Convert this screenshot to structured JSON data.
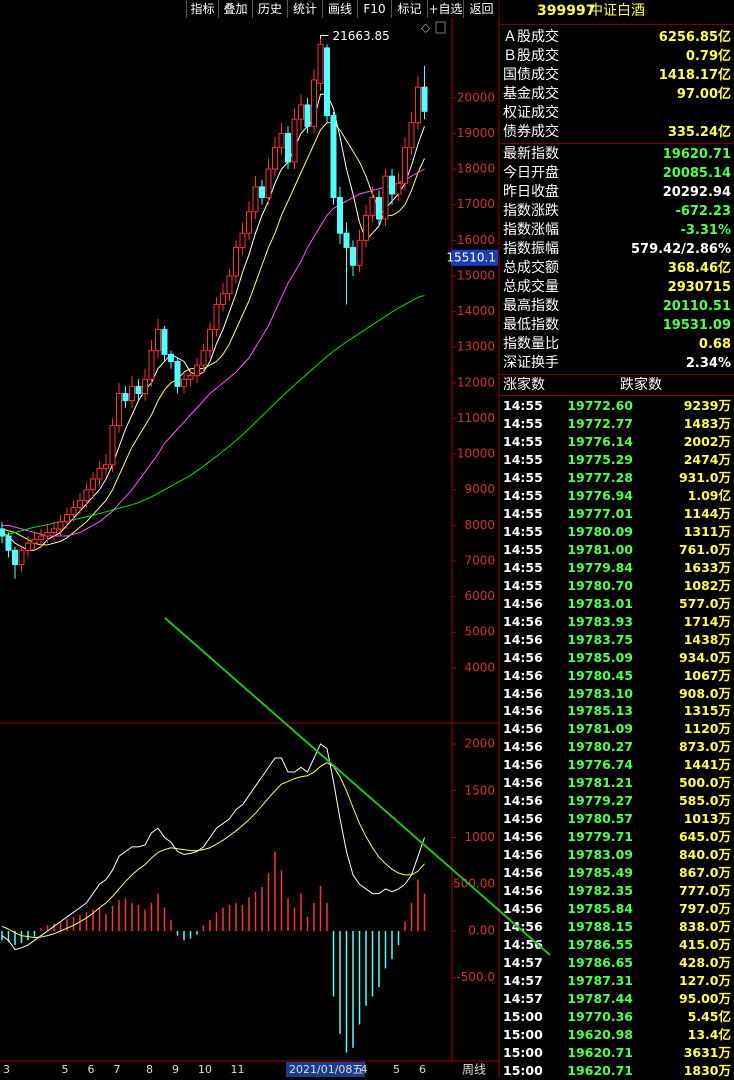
{
  "toolbar": [
    "指标",
    "叠加",
    "历史",
    "统计",
    "画线",
    "F10",
    "标记",
    "+自选",
    "返回"
  ],
  "chart_data": [
    {
      "type": "candlestick",
      "period": "周线",
      "up_color": "#ff3232",
      "down_color": "#54ffff",
      "categories": [
        "3",
        null,
        null,
        null,
        null,
        null,
        null,
        null,
        null,
        "5",
        null,
        null,
        null,
        "6",
        null,
        null,
        null,
        "7",
        null,
        null,
        null,
        null,
        "8",
        null,
        null,
        null,
        "9",
        null,
        null,
        null,
        "10",
        null,
        null,
        null,
        null,
        "11",
        null,
        null,
        null,
        null,
        null,
        null,
        null,
        null,
        "2021/01/08五",
        null,
        null,
        null,
        null,
        null,
        null,
        null,
        null,
        null,
        null,
        "4",
        null,
        null,
        null,
        null,
        "5",
        null,
        null,
        null,
        "6",
        null
      ],
      "open": [
        7900,
        7700,
        7300,
        6900,
        7300,
        7500,
        7600,
        7700,
        7800,
        7900,
        8100,
        8300,
        8500,
        8700,
        9000,
        9300,
        9600,
        9700,
        10800,
        11700,
        11500,
        11900,
        11700,
        12100,
        12900,
        13500,
        12800,
        12600,
        11900,
        12100,
        12200,
        12500,
        12900,
        13500,
        14200,
        14500,
        15000,
        15800,
        16200,
        16800,
        17500,
        17200,
        18000,
        18600,
        19000,
        18200,
        19400,
        19800,
        19200,
        20400,
        21400,
        19500,
        17200,
        16200,
        15800,
        15300,
        16000,
        16700,
        17200,
        16600,
        17800,
        17300,
        17600,
        18600,
        19300,
        20300
      ],
      "high": [
        8100,
        7800,
        7400,
        7400,
        7700,
        7800,
        7900,
        8000,
        8100,
        8300,
        8500,
        8700,
        8900,
        9200,
        9500,
        9800,
        10000,
        11000,
        12000,
        11900,
        12200,
        12100,
        12400,
        13200,
        13800,
        13600,
        12900,
        12700,
        12300,
        12400,
        12700,
        13100,
        13700,
        14400,
        14800,
        15200,
        16000,
        16500,
        17100,
        17800,
        17700,
        18300,
        18900,
        19300,
        19200,
        19700,
        20100,
        20000,
        20800,
        21663.85,
        21500,
        19600,
        17500,
        16500,
        16000,
        16300,
        17000,
        17500,
        17400,
        18000,
        18000,
        17900,
        18900,
        19600,
        20600,
        20900
      ],
      "low": [
        7500,
        7100,
        6500,
        6700,
        7100,
        7300,
        7400,
        7500,
        7600,
        7700,
        7900,
        8100,
        8300,
        8500,
        8800,
        9100,
        9400,
        9500,
        10600,
        11300,
        11300,
        11500,
        11500,
        11900,
        12700,
        12600,
        12400,
        11700,
        11700,
        11900,
        12000,
        12300,
        12700,
        13300,
        14000,
        14300,
        14800,
        15600,
        16000,
        16600,
        17000,
        17000,
        17800,
        18400,
        18000,
        18000,
        19100,
        19000,
        19000,
        20200,
        19300,
        17000,
        15900,
        14200,
        15000,
        15100,
        15800,
        16500,
        16400,
        16400,
        17000,
        17100,
        17400,
        18400,
        19100,
        19400
      ],
      "close": [
        7700,
        7300,
        6900,
        7300,
        7500,
        7600,
        7700,
        7800,
        7900,
        8100,
        8300,
        8500,
        8700,
        9000,
        9300,
        9600,
        9700,
        10800,
        11700,
        11500,
        11900,
        11700,
        12100,
        12900,
        13500,
        12800,
        12600,
        11900,
        12100,
        12200,
        12500,
        12900,
        13500,
        14200,
        14500,
        15000,
        15800,
        16200,
        16800,
        17500,
        17200,
        18000,
        18600,
        19000,
        18200,
        19400,
        19800,
        19200,
        20500,
        21500,
        19500,
        17200,
        16200,
        15800,
        15300,
        16000,
        16700,
        17200,
        16600,
        17800,
        17300,
        17600,
        18600,
        19300,
        20300,
        19620.71
      ],
      "series": [
        {
          "color": "#ffffff",
          "values": [
            7800,
            7700,
            7500,
            7400,
            7300,
            7300,
            7400,
            7600,
            7700,
            7800,
            8000,
            8200,
            8400,
            8600,
            8800,
            9000,
            9300,
            9700,
            10200,
            10700,
            11100,
            11500,
            11800,
            12000,
            12400,
            12600,
            12800,
            12700,
            12600,
            12300,
            12200,
            12300,
            12600,
            13100,
            13500,
            14000,
            14500,
            15100,
            15600,
            16200,
            16700,
            17100,
            17600,
            18000,
            18200,
            18600,
            19000,
            19200,
            19400,
            20100,
            20100,
            19700,
            18900,
            18000,
            17300,
            16500,
            16000,
            16200,
            16400,
            16900,
            17100,
            17300,
            17600,
            18100,
            18700,
            19200
          ]
        },
        {
          "color": "#ffff54",
          "values": [
            7900,
            7850,
            7800,
            7700,
            7600,
            7500,
            7450,
            7450,
            7500,
            7550,
            7650,
            7800,
            7950,
            8100,
            8300,
            8500,
            8700,
            9000,
            9400,
            9800,
            10200,
            10500,
            10800,
            11100,
            11500,
            11800,
            12000,
            12100,
            12300,
            12400,
            12400,
            12400,
            12500,
            12600,
            12800,
            13100,
            13500,
            13900,
            14300,
            14800,
            15300,
            15800,
            16200,
            16700,
            17100,
            17500,
            17900,
            18300,
            18700,
            19100,
            19300,
            19300,
            19100,
            18800,
            18500,
            18200,
            17800,
            17300,
            16900,
            16700,
            16700,
            16800,
            17000,
            17400,
            17900,
            18300
          ]
        },
        {
          "color": "#ff54ff",
          "values": [
            8000,
            8000,
            7950,
            7900,
            7850,
            7800,
            7750,
            7700,
            7700,
            7700,
            7700,
            7750,
            7800,
            7900,
            8000,
            8100,
            8250,
            8400,
            8600,
            8800,
            9000,
            9250,
            9500,
            9750,
            10000,
            10300,
            10500,
            10700,
            10900,
            11100,
            11300,
            11500,
            11700,
            11850,
            12000,
            12150,
            12300,
            12500,
            12700,
            13000,
            13300,
            13600,
            14000,
            14400,
            14800,
            15100,
            15400,
            15800,
            16100,
            16400,
            16700,
            16900,
            17000,
            17100,
            17200,
            17300,
            17350,
            17400,
            17450,
            17500,
            17550,
            17600,
            17700,
            17800,
            17900,
            18000
          ]
        },
        {
          "color": "#00e600",
          "values": [
            7700,
            7750,
            7800,
            7850,
            7900,
            7950,
            7980,
            8020,
            8060,
            8100,
            8130,
            8160,
            8200,
            8240,
            8280,
            8330,
            8380,
            8430,
            8480,
            8530,
            8580,
            8640,
            8720,
            8800,
            8900,
            9000,
            9100,
            9200,
            9300,
            9400,
            9530,
            9660,
            9800,
            9940,
            10080,
            10230,
            10380,
            10540,
            10710,
            10890,
            11070,
            11250,
            11430,
            11600,
            11770,
            11940,
            12100,
            12260,
            12420,
            12580,
            12740,
            12890,
            13020,
            13150,
            13270,
            13390,
            13510,
            13630,
            13750,
            13870,
            13990,
            14100,
            14200,
            14300,
            14400,
            14450
          ]
        }
      ],
      "ylim": [
        2480,
        22240
      ],
      "yticks": [
        4000,
        5000,
        6000,
        7000,
        8000,
        9000,
        10000,
        11000,
        12000,
        13000,
        14000,
        15000,
        16000,
        17000,
        18000,
        19000,
        20000
      ],
      "cursor_value": 15510.1
    },
    {
      "type": "macd",
      "up_color": "#ff3232",
      "down_color": "#54ffff",
      "series": [
        {
          "color": "#ffffff",
          "values": [
            -50,
            -100,
            -200,
            -180,
            -150,
            -100,
            -50,
            0,
            50,
            100,
            150,
            200,
            250,
            300,
            400,
            500,
            550,
            650,
            800,
            850,
            900,
            900,
            920,
            1050,
            1100,
            1000,
            950,
            850,
            820,
            830,
            850,
            900,
            1000,
            1100,
            1150,
            1200,
            1300,
            1350,
            1450,
            1550,
            1650,
            1750,
            1850,
            1850,
            1700,
            1700,
            1750,
            1700,
            1850,
            2000,
            1950,
            1600,
            1200,
            850,
            600,
            500,
            450,
            400,
            400,
            450,
            420,
            450,
            500,
            600,
            800,
            1000
          ]
        },
        {
          "color": "#ffff54",
          "values": [
            50,
            20,
            -20,
            -50,
            -60,
            -70,
            -65,
            -50,
            -30,
            0,
            30,
            60,
            100,
            140,
            190,
            250,
            300,
            370,
            450,
            530,
            600,
            660,
            710,
            780,
            840,
            870,
            890,
            880,
            870,
            860,
            860,
            870,
            890,
            930,
            970,
            1020,
            1070,
            1130,
            1190,
            1260,
            1340,
            1420,
            1500,
            1570,
            1600,
            1630,
            1650,
            1660,
            1700,
            1760,
            1800,
            1760,
            1650,
            1500,
            1320,
            1150,
            1010,
            890,
            790,
            720,
            660,
            620,
            600,
            600,
            640,
            720
          ]
        }
      ],
      "histogram": [
        -100,
        -120,
        -150,
        -130,
        -100,
        -60,
        30,
        60,
        80,
        100,
        130,
        150,
        170,
        200,
        230,
        250,
        180,
        270,
        330,
        350,
        300,
        280,
        230,
        300,
        400,
        250,
        120,
        -50,
        -100,
        -80,
        -40,
        60,
        120,
        200,
        250,
        280,
        300,
        280,
        360,
        420,
        470,
        620,
        850,
        650,
        350,
        250,
        400,
        150,
        300,
        480,
        300,
        -700,
        -1100,
        -1300,
        -1250,
        -1000,
        -800,
        -700,
        -600,
        -400,
        -300,
        -150,
        100,
        300,
        550,
        400
      ],
      "ylim": [
        -1380,
        2214
      ],
      "yticks": [
        {
          "value": -500,
          "label": "-500.0"
        },
        {
          "value": 0,
          "label": "0.00"
        },
        {
          "value": 500,
          "label": "500.00"
        },
        1000,
        1500,
        2000
      ]
    }
  ],
  "quote_panel": {
    "code": "399997",
    "name": "中证白酒",
    "volume_rows": [
      {
        "label": "Ａ股成交",
        "value": "6256.85亿",
        "color": "#ffff54"
      },
      {
        "label": "Ｂ股成交",
        "value": "0.79亿",
        "color": "#ffff54"
      },
      {
        "label": "国债成交",
        "value": "1418.17亿",
        "color": "#ffff54"
      },
      {
        "label": "基金成交",
        "value": "97.00亿",
        "color": "#ffff54"
      },
      {
        "label": "权证成交"
      },
      {
        "label": "债券成交",
        "value": "335.24亿",
        "color": "#ffff54"
      }
    ],
    "index_rows": [
      {
        "label": "最新指数",
        "value": "19620.71",
        "color": "#54ff54"
      },
      {
        "label": "今日开盘",
        "value": "20085.14",
        "color": "#54ff54"
      },
      {
        "label": "昨日收盘",
        "value": "20292.94",
        "color": "#ffffff"
      },
      {
        "label": "指数涨跌",
        "value": "-672.23",
        "color": "#54ff54"
      },
      {
        "label": "指数涨幅",
        "value": "-3.31%",
        "color": "#54ff54"
      },
      {
        "label": "指数振幅",
        "value": "579.42/2.86%",
        "color": "#ffffff"
      },
      {
        "label": "总成交额",
        "value": "368.46亿",
        "color": "#ffff54"
      },
      {
        "label": "总成交量",
        "value": "2930715",
        "color": "#ffff54"
      },
      {
        "label": "最高指数",
        "value": "20110.51",
        "color": "#54ff54"
      },
      {
        "label": "最低指数",
        "value": "19531.09",
        "color": "#54ff54"
      },
      {
        "label": "指数量比",
        "value": "0.68",
        "color": "#ffff54"
      },
      {
        "label": "深证换手",
        "value": "2.34%",
        "color": "#ffffff"
      }
    ],
    "breadth_header": [
      "涨家数",
      "跌家数"
    ],
    "ticks": [
      [
        "14:55",
        "19772.60",
        "9239万"
      ],
      [
        "14:55",
        "19772.77",
        "1483万"
      ],
      [
        "14:55",
        "19776.14",
        "2002万"
      ],
      [
        "14:55",
        "19775.29",
        "2474万"
      ],
      [
        "14:55",
        "19777.28",
        "931.0万"
      ],
      [
        "14:55",
        "19776.94",
        "1.09亿"
      ],
      [
        "14:55",
        "19777.01",
        "1144万"
      ],
      [
        "14:55",
        "19780.09",
        "1311万"
      ],
      [
        "14:55",
        "19781.00",
        "761.0万"
      ],
      [
        "14:55",
        "19779.84",
        "1633万"
      ],
      [
        "14:55",
        "19780.70",
        "1082万"
      ],
      [
        "14:56",
        "19783.01",
        "577.0万"
      ],
      [
        "14:56",
        "19783.93",
        "1714万"
      ],
      [
        "14:56",
        "19783.75",
        "1438万"
      ],
      [
        "14:56",
        "19785.09",
        "934.0万"
      ],
      [
        "14:56",
        "19780.45",
        "1067万"
      ],
      [
        "14:56",
        "19783.10",
        "908.0万"
      ],
      [
        "14:56",
        "19785.13",
        "1315万"
      ],
      [
        "14:56",
        "19781.09",
        "1120万"
      ],
      [
        "14:56",
        "19780.27",
        "873.0万"
      ],
      [
        "14:56",
        "19776.74",
        "1441万"
      ],
      [
        "14:56",
        "19781.21",
        "500.0万"
      ],
      [
        "14:56",
        "19779.27",
        "585.0万"
      ],
      [
        "14:56",
        "19780.57",
        "1013万"
      ],
      [
        "14:56",
        "19779.71",
        "645.0万"
      ],
      [
        "14:56",
        "19783.09",
        "840.0万"
      ],
      [
        "14:56",
        "19785.49",
        "867.0万"
      ],
      [
        "14:56",
        "19782.35",
        "777.0万"
      ],
      [
        "14:56",
        "19785.84",
        "797.0万"
      ],
      [
        "14:56",
        "19788.15",
        "838.0万"
      ],
      [
        "14:56",
        "19786.55",
        "415.0万"
      ],
      [
        "14:57",
        "19786.65",
        "428.0万"
      ],
      [
        "14:57",
        "19787.31",
        "127.0万"
      ],
      [
        "14:57",
        "19787.44",
        "95.00万"
      ],
      [
        "15:00",
        "19770.36",
        "5.45亿"
      ],
      [
        "15:00",
        "19620.98",
        "13.4亿"
      ],
      [
        "15:00",
        "19620.71",
        "3631万"
      ],
      [
        "15:00",
        "19620.71",
        "1830万"
      ]
    ]
  }
}
